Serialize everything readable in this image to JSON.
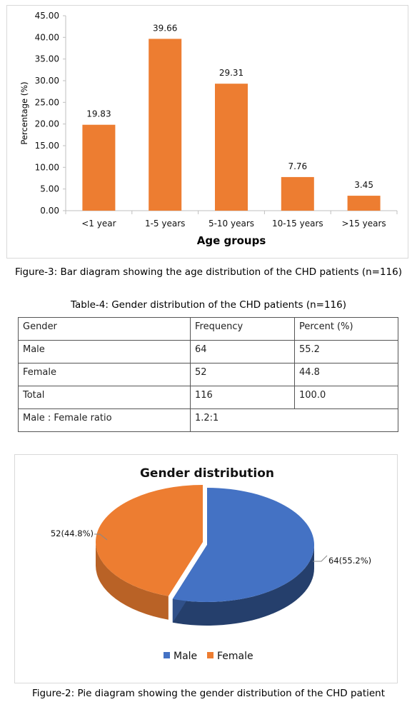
{
  "figure3": {
    "caption": "Figure-3: Bar diagram showing the age distribution of the CHD patients (n=116)",
    "chart_data": {
      "type": "bar",
      "categories": [
        "<1 year",
        "1-5 years",
        "5-10 years",
        "10-15 years",
        ">15 years"
      ],
      "values": [
        19.83,
        39.66,
        29.31,
        7.76,
        3.45
      ],
      "data_labels": [
        "19.83",
        "39.66",
        "29.31",
        "7.76",
        "3.45"
      ],
      "title": "",
      "xlabel": "Age groups",
      "ylabel": "Percentage (%)",
      "ylim": [
        0,
        45
      ],
      "yticks": [
        "0.00",
        "5.00",
        "10.00",
        "15.00",
        "20.00",
        "25.00",
        "30.00",
        "35.00",
        "40.00",
        "45.00"
      ],
      "bar_color": "#ed7d31",
      "grid": false
    }
  },
  "table4": {
    "caption": "Table-4: Gender distribution of the CHD patients (n=116)",
    "headers": [
      "Gender",
      "Frequency",
      "Percent (%)"
    ],
    "rows": [
      [
        "Male",
        "64",
        "55.2"
      ],
      [
        "Female",
        "52",
        "44.8"
      ],
      [
        "Total",
        "116",
        "100.0"
      ]
    ],
    "ratio_label": "Male : Female ratio",
    "ratio_value": "1.2:1"
  },
  "figure2": {
    "caption": "Figure-2: Pie diagram showing the gender distribution of the CHD patient",
    "chart_data": {
      "type": "pie",
      "title": "Gender distribution",
      "slices": [
        {
          "name": "Male",
          "value": 64,
          "percent": 55.2,
          "label": "64(55.2%)",
          "color": "#4472c4"
        },
        {
          "name": "Female",
          "value": 52,
          "percent": 44.8,
          "label": "52(44.8%)",
          "color": "#ed7d31"
        }
      ],
      "legend": [
        "Male",
        "Female"
      ],
      "legend_position": "bottom"
    }
  }
}
